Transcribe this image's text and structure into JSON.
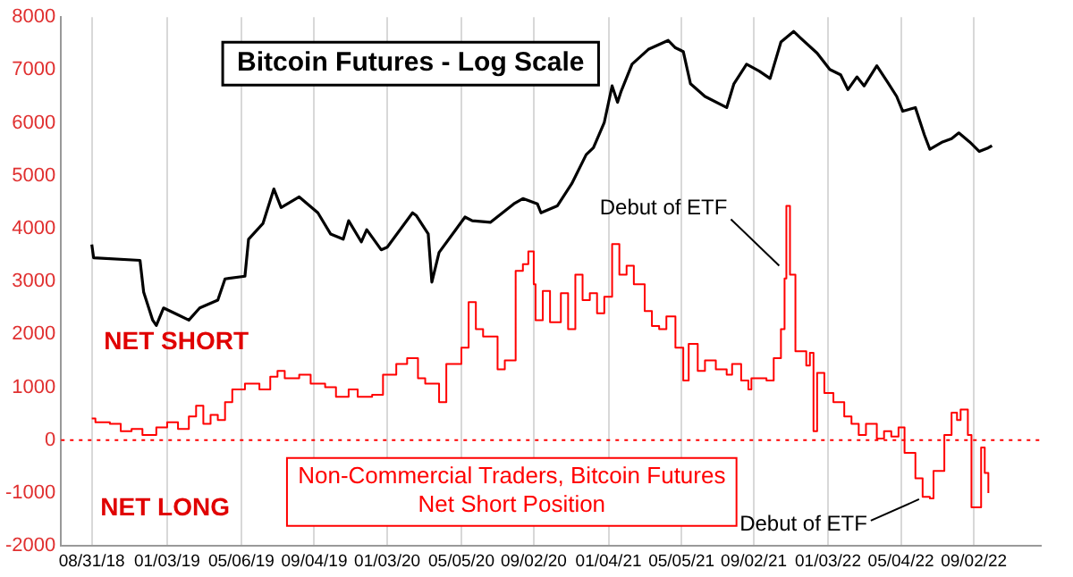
{
  "chart_data": {
    "type": "line",
    "title": "Bitcoin Futures - Log Scale",
    "xlim": [
      "2018-07-11",
      "2022-12-22"
    ],
    "xticks": [
      {
        "value": "2018-08-31",
        "label": "08/31/18"
      },
      {
        "value": "2019-01-03",
        "label": "01/03/19"
      },
      {
        "value": "2019-05-06",
        "label": "05/06/19"
      },
      {
        "value": "2019-09-04",
        "label": "09/04/19"
      },
      {
        "value": "2020-01-03",
        "label": "01/03/20"
      },
      {
        "value": "2020-05-05",
        "label": "05/05/20"
      },
      {
        "value": "2020-09-02",
        "label": "09/02/20"
      },
      {
        "value": "2021-01-04",
        "label": "01/04/21"
      },
      {
        "value": "2021-05-05",
        "label": "05/05/21"
      },
      {
        "value": "2021-09-02",
        "label": "09/02/21"
      },
      {
        "value": "2022-01-03",
        "label": "01/03/22"
      },
      {
        "value": "2022-05-04",
        "label": "05/04/22"
      },
      {
        "value": "2022-09-02",
        "label": "09/02/22"
      }
    ],
    "ylim": [
      -2000,
      8000
    ],
    "yticks": [
      -2000,
      -1000,
      0,
      1000,
      2000,
      3000,
      4000,
      5000,
      6000,
      7000,
      8000
    ],
    "grid": "x",
    "legend": false,
    "marker": "none",
    "ref_lines": [
      {
        "axis": "y",
        "value": 0,
        "color": "#ff0000",
        "line_style": "dotted"
      }
    ],
    "annotations": [
      "NET SHORT",
      "NET LONG",
      {
        "text": "Debut of ETF",
        "x": "2021-10-23",
        "y": 3300
      },
      {
        "text": "Debut of ETF",
        "x": "2022-06-12",
        "y": -1050
      }
    ],
    "series": [
      {
        "color": "#000000",
        "x": [
          "2018-08-31",
          "2018-09-03",
          "2018-11-19",
          "2018-11-25",
          "2018-12-10",
          "2018-12-16",
          "2018-12-28",
          "2019-01-21",
          "2019-02-08",
          "2019-02-26",
          "2019-03-28",
          "2019-04-09",
          "2019-05-12",
          "2019-05-18",
          "2019-06-11",
          "2019-06-29",
          "2019-07-11",
          "2019-08-10",
          "2019-09-10",
          "2019-10-01",
          "2019-10-22",
          "2019-10-31",
          "2019-11-21",
          "2019-11-30",
          "2019-12-24",
          "2020-01-03",
          "2020-02-14",
          "2020-02-20",
          "2020-03-11",
          "2020-03-17",
          "2020-03-29",
          "2020-05-11",
          "2020-05-23",
          "2020-06-22",
          "2020-07-31",
          "2020-08-15",
          "2020-09-08",
          "2020-09-14",
          "2020-10-11",
          "2020-11-04",
          "2020-11-28",
          "2020-12-10",
          "2020-12-28",
          "2021-01-10",
          "2021-01-19",
          "2021-01-25",
          "2021-02-12",
          "2021-03-11",
          "2021-04-13",
          "2021-04-25",
          "2021-05-08",
          "2021-05-20",
          "2021-06-13",
          "2021-07-19",
          "2021-07-31",
          "2021-08-21",
          "2021-09-11",
          "2021-09-29",
          "2021-10-17",
          "2021-11-07",
          "2021-11-19",
          "2021-12-16",
          "2022-01-06",
          "2022-01-24",
          "2022-02-05",
          "2022-02-20",
          "2022-03-04",
          "2022-03-25",
          "2022-04-12",
          "2022-04-27",
          "2022-05-07",
          "2022-05-28",
          "2022-06-12",
          "2022-06-21",
          "2022-07-12",
          "2022-07-27",
          "2022-08-08",
          "2022-08-26",
          "2022-09-11",
          "2022-09-26",
          "2022-10-02"
        ],
        "values": [
          3700,
          3450,
          3400,
          2800,
          2270,
          2170,
          2500,
          2370,
          2270,
          2500,
          2650,
          3050,
          3100,
          3800,
          4100,
          4750,
          4400,
          4600,
          4300,
          3900,
          3800,
          4150,
          3750,
          3980,
          3600,
          3650,
          4300,
          4250,
          3900,
          2990,
          3550,
          4220,
          4150,
          4120,
          4470,
          4570,
          4470,
          4300,
          4430,
          4850,
          5400,
          5530,
          6010,
          6700,
          6390,
          6600,
          7110,
          7390,
          7560,
          7420,
          7350,
          6740,
          6500,
          6290,
          6740,
          7110,
          6980,
          6840,
          7530,
          7730,
          7600,
          7320,
          7010,
          6910,
          6630,
          6870,
          6700,
          7080,
          6770,
          6500,
          6220,
          6290,
          5770,
          5500,
          5640,
          5700,
          5810,
          5640,
          5460,
          5530,
          5570
        ]
      },
      {
        "name": "Non-Commercial Traders, Bitcoin Futures Net Short Position",
        "type": "step",
        "color": "#ff0000",
        "x": [
          "2018-08-31",
          "2018-09-06",
          "2018-09-30",
          "2018-10-18",
          "2018-11-05",
          "2018-11-23",
          "2018-12-16",
          "2019-01-03",
          "2019-01-21",
          "2019-02-08",
          "2019-02-20",
          "2019-03-04",
          "2019-03-16",
          "2019-03-28",
          "2019-04-09",
          "2019-04-21",
          "2019-05-12",
          "2019-06-05",
          "2019-06-23",
          "2019-07-05",
          "2019-07-17",
          "2019-08-10",
          "2019-08-29",
          "2019-09-22",
          "2019-10-10",
          "2019-10-31",
          "2019-11-15",
          "2019-12-09",
          "2019-12-27",
          "2020-01-18",
          "2020-02-05",
          "2020-02-23",
          "2020-03-06",
          "2020-03-29",
          "2020-04-10",
          "2020-05-05",
          "2020-05-17",
          "2020-05-29",
          "2020-06-10",
          "2020-07-04",
          "2020-07-16",
          "2020-08-03",
          "2020-08-15",
          "2020-08-24",
          "2020-09-02",
          "2020-09-05",
          "2020-09-17",
          "2020-09-29",
          "2020-10-17",
          "2020-10-29",
          "2020-11-10",
          "2020-11-22",
          "2020-12-04",
          "2020-12-16",
          "2020-12-28",
          "2021-01-10",
          "2021-01-22",
          "2021-02-03",
          "2021-02-15",
          "2021-03-05",
          "2021-03-17",
          "2021-03-29",
          "2021-04-10",
          "2021-04-25",
          "2021-05-08",
          "2021-05-17",
          "2021-06-01",
          "2021-06-13",
          "2021-07-01",
          "2021-07-19",
          "2021-07-28",
          "2021-08-12",
          "2021-08-24",
          "2021-08-29",
          "2021-09-23",
          "2021-10-05",
          "2021-10-17",
          "2021-10-23",
          "2021-10-26",
          "2021-11-01",
          "2021-11-10",
          "2021-11-28",
          "2021-12-04",
          "2021-12-10",
          "2021-12-16",
          "2021-12-28",
          "2022-01-12",
          "2022-01-30",
          "2022-02-11",
          "2022-02-23",
          "2022-03-07",
          "2022-03-25",
          "2022-04-06",
          "2022-04-18",
          "2022-04-30",
          "2022-05-10",
          "2022-05-28",
          "2022-06-09",
          "2022-06-21",
          "2022-06-27",
          "2022-07-15",
          "2022-07-27",
          "2022-08-05",
          "2022-08-11",
          "2022-08-23",
          "2022-08-29",
          "2022-09-11",
          "2022-09-14",
          "2022-09-20",
          "2022-09-26"
        ],
        "values": [
          410,
          340,
          310,
          170,
          210,
          100,
          240,
          340,
          210,
          450,
          650,
          310,
          480,
          380,
          720,
          960,
          1070,
          960,
          1200,
          1310,
          1170,
          1240,
          1070,
          1000,
          820,
          960,
          820,
          860,
          1240,
          1440,
          1550,
          1170,
          1070,
          720,
          1440,
          1750,
          2610,
          2100,
          1960,
          1340,
          1510,
          3200,
          3330,
          3570,
          2950,
          2270,
          2820,
          2230,
          2780,
          2100,
          3130,
          2650,
          2780,
          2400,
          2710,
          3710,
          3130,
          3300,
          2950,
          2440,
          2160,
          2100,
          2340,
          1750,
          1130,
          1820,
          1310,
          1510,
          1340,
          1240,
          1440,
          1130,
          960,
          1170,
          1130,
          1550,
          2100,
          3060,
          4430,
          3130,
          1680,
          1410,
          1650,
          170,
          1270,
          890,
          720,
          450,
          310,
          100,
          310,
          30,
          170,
          70,
          240,
          -240,
          -720,
          -1070,
          -1100,
          -580,
          100,
          520,
          380,
          580,
          100,
          -1270,
          -1270,
          -140,
          -620,
          -1000
        ]
      }
    ]
  }
}
